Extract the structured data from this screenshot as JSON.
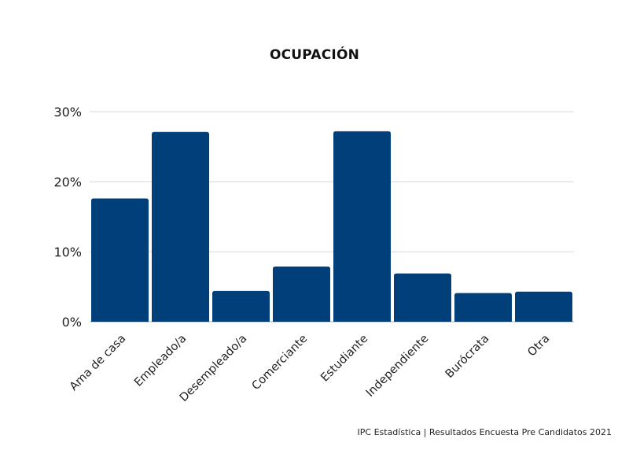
{
  "chart_data": {
    "type": "bar",
    "title": "OCUPACIÓN",
    "xlabel": "",
    "ylabel": "",
    "categories": [
      "Ama de casa",
      "Empleado/a",
      "Desempleado/a",
      "Comerciante",
      "Estudiante",
      "Independiente",
      "Burócrata",
      "Otra"
    ],
    "values": [
      17.6,
      27.1,
      4.4,
      7.9,
      27.2,
      6.9,
      4.1,
      4.3
    ],
    "ylim": [
      0,
      30
    ],
    "yticks": [
      0,
      10,
      20,
      30
    ],
    "ytick_labels": [
      "0%",
      "10%",
      "20%",
      "30%"
    ],
    "grid": true,
    "bar_color": "#003f7a",
    "grid_color": "#d9d9d9"
  },
  "footer": {
    "source": "IPC Estadística | Resultados Encuesta Pre Candidatos 2021"
  }
}
